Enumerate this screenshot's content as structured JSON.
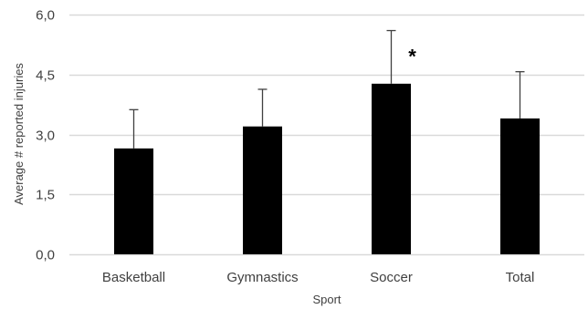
{
  "chart_data": {
    "type": "bar",
    "title": "",
    "xlabel": "Sport",
    "ylabel": "Average # reported injuries",
    "categories": [
      "Basketball",
      "Gymnastics",
      "Soccer",
      "Total"
    ],
    "values": [
      2.65,
      3.2,
      4.27,
      3.4
    ],
    "error_upper": [
      0.97,
      0.93,
      1.33,
      1.17
    ],
    "ylim": [
      0,
      6
    ],
    "yticks": [
      0,
      1.5,
      3,
      4.5,
      6
    ],
    "ytick_labels": [
      "0,0",
      "1,5",
      "3,0",
      "4,5",
      "6,0"
    ],
    "grid": true,
    "legend": "none",
    "annotations": [
      {
        "category": "Soccer",
        "text": "*"
      }
    ],
    "colors": {
      "bar": "#000000",
      "error_bar": "#404040",
      "grid": "#d9d9d9",
      "text": "#404040"
    }
  }
}
